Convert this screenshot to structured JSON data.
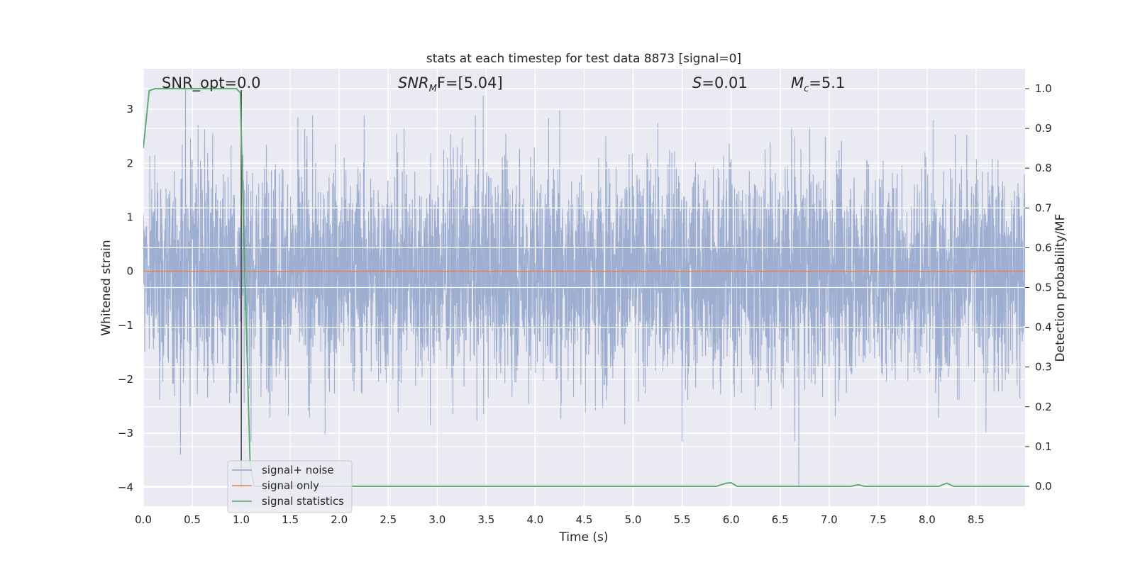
{
  "chart_data": {
    "type": "line",
    "title": "stats at each timestep for test data 8873 [signal=0]",
    "xlabel": "Time (s)",
    "ylabel": "Whitened strain",
    "ylabel_right": "Detection probability/MF",
    "xlim": [
      0.0,
      9.0
    ],
    "ylim": [
      -4.35,
      3.75
    ],
    "ylim_right": [
      -0.05,
      1.05
    ],
    "xticks": [
      "0.0",
      "0.5",
      "1.0",
      "1.5",
      "2.0",
      "2.5",
      "3.0",
      "3.5",
      "4.0",
      "4.5",
      "5.0",
      "5.5",
      "6.0",
      "6.5",
      "7.0",
      "7.5",
      "8.0",
      "8.5"
    ],
    "yticks": [
      "3",
      "2",
      "1",
      "0",
      "−1",
      "−2",
      "−3",
      "−4"
    ],
    "yticks_right": [
      "1.0",
      "0.9",
      "0.8",
      "0.7",
      "0.6",
      "0.5",
      "0.4",
      "0.3",
      "0.2",
      "0.1",
      "0.0"
    ],
    "grid": true,
    "legend_position": "lower-left",
    "annotations": {
      "snr_opt": "SNR_opt=0.0",
      "snr_mf_main": "SNR",
      "snr_mf_sub": "M",
      "snr_mf_rest": "F=[5.04]",
      "s_var": "S",
      "s_rest": "=0.01",
      "mc_var": "M",
      "mc_sub": "c",
      "mc_rest": "=5.1"
    },
    "series": [
      {
        "name": "signal+ noise",
        "axis": "left",
        "color": "#8fa3cb",
        "stats": {
          "mean": 0.0,
          "std": 1.0,
          "min": -4.0,
          "max": 3.4
        },
        "peaks": [
          [
            0.43,
            3.4
          ],
          [
            0.38,
            -3.4
          ],
          [
            3.47,
            3.25
          ],
          [
            4.25,
            2.98
          ],
          [
            5.5,
            -3.15
          ],
          [
            6.69,
            -4.0
          ],
          [
            6.65,
            -3.15
          ],
          [
            8.06,
            2.8
          ],
          [
            8.6,
            -2.98
          ],
          [
            2.93,
            -2.85
          ],
          [
            1.0,
            -2.8
          ]
        ]
      },
      {
        "name": "signal only",
        "axis": "left",
        "color": "#dd8452",
        "x": [
          0.0,
          9.0
        ],
        "y": [
          0.0,
          0.0
        ]
      },
      {
        "name": "signal statistics",
        "axis": "right",
        "color": "#55a868",
        "x": [
          0.0,
          0.06,
          0.12,
          0.5,
          0.95,
          0.99,
          1.04,
          1.09,
          1.13,
          1.5,
          2.0,
          3.0,
          4.0,
          5.0,
          5.85,
          5.95,
          6.0,
          6.06,
          7.0,
          7.22,
          7.3,
          7.36,
          8.0,
          8.12,
          8.2,
          8.27,
          9.0
        ],
        "y": [
          0.85,
          0.995,
          1.0,
          1.0,
          1.0,
          0.99,
          0.5,
          0.06,
          0.0,
          0.0,
          0.0,
          0.0,
          0.0,
          0.0,
          0.0,
          0.008,
          0.009,
          0.0,
          0.0,
          0.0,
          0.004,
          0.0,
          0.0,
          0.0,
          0.008,
          0.0,
          0.0
        ]
      }
    ],
    "vertical_marker": {
      "x": 1.0,
      "color": "#404040"
    }
  }
}
